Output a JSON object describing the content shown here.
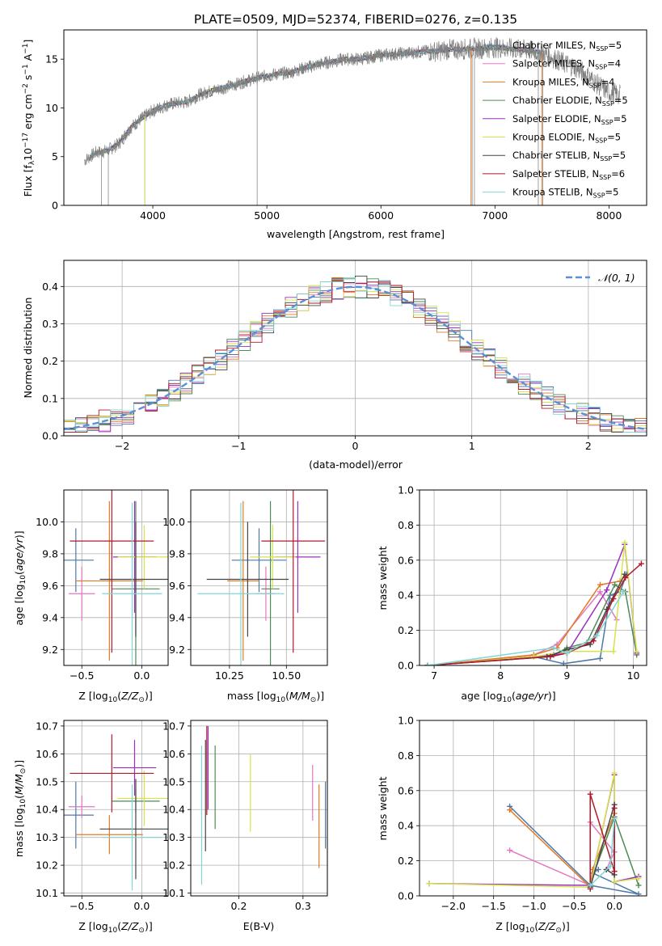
{
  "title": "PLATE=0509, MJD=52374, FIBERID=0276, z=0.135",
  "colors": {
    "series": [
      "#4e79a7",
      "#e377c2",
      "#e07b24",
      "#4f8a57",
      "#9b30c0",
      "#d7e34a",
      "#444444",
      "#b2182b",
      "#7fd6d6"
    ],
    "normal_curve": "#5b8fd6",
    "grid": "#b0b0b0"
  },
  "legend_labels": [
    {
      "pre": "Chabrier MILES, N",
      "sub": "SSP",
      "post": "=5"
    },
    {
      "pre": "Salpeter MILES, N",
      "sub": "SSP",
      "post": "=4"
    },
    {
      "pre": "Kroupa MILES, N",
      "sub": "SSP",
      "post": "=4"
    },
    {
      "pre": "Chabrier ELODIE, N",
      "sub": "SSP",
      "post": "=5"
    },
    {
      "pre": "Salpeter ELODIE, N",
      "sub": "SSP",
      "post": "=5"
    },
    {
      "pre": "Kroupa ELODIE, N",
      "sub": "SSP",
      "post": "=5"
    },
    {
      "pre": "Chabrier STELIB, N",
      "sub": "SSP",
      "post": "=5"
    },
    {
      "pre": "Salpeter STELIB, N",
      "sub": "SSP",
      "post": "=6"
    },
    {
      "pre": "Kroupa STELIB, N",
      "sub": "SSP",
      "post": "=5"
    }
  ],
  "chart_data": [
    {
      "id": "spectrum",
      "type": "line",
      "title": "PLATE=0509, MJD=52374, FIBERID=0276, z=0.135",
      "xlabel": "wavelength [Angstrom, rest frame]",
      "ylabel": "Flux [f_λ 10^-17 erg cm^-2 s^-1 A^-1]",
      "xlim": [
        3220,
        8330
      ],
      "ylim": [
        0,
        18
      ],
      "xticks": [
        4000,
        5000,
        6000,
        7000,
        8000
      ],
      "yticks": [
        0,
        5,
        10,
        15
      ],
      "data_color": "#808080",
      "data_series": {
        "x": [
          3400,
          3500,
          3600,
          3700,
          3800,
          3900,
          4000,
          4100,
          4200,
          4300,
          4400,
          4500,
          4600,
          4700,
          4800,
          4900,
          5000,
          5100,
          5200,
          5300,
          5400,
          5500,
          5600,
          5700,
          5800,
          5900,
          6000,
          6100,
          6200,
          6300,
          6400,
          6500,
          6600,
          6700,
          6800,
          6900,
          7000,
          7100,
          7200,
          7300,
          7400,
          7500,
          7600,
          7700,
          7800,
          7900,
          8000,
          8100
        ],
        "y": [
          4.6,
          5.4,
          5.6,
          6.3,
          7.9,
          8.9,
          9.7,
          10.2,
          10.5,
          10.6,
          11.3,
          11.7,
          12.0,
          12.3,
          12.7,
          13.0,
          13.3,
          13.5,
          13.6,
          14.0,
          14.3,
          14.6,
          14.8,
          15.0,
          15.0,
          15.2,
          15.4,
          15.5,
          15.6,
          15.7,
          15.8,
          15.8,
          16.0,
          16.0,
          16.1,
          16.1,
          16.2,
          16.1,
          16.0,
          15.9,
          15.7,
          15.2,
          14.6,
          14.2,
          13.4,
          12.4,
          11.6,
          11.3
        ]
      },
      "model_x_range": [
        3450,
        7400
      ]
    },
    {
      "id": "residual-hist",
      "type": "line",
      "xlabel": "(data-model)/error",
      "ylabel": "Normed distribution",
      "xlim": [
        -2.5,
        2.5
      ],
      "ylim": [
        0,
        0.47
      ],
      "xticks": [
        -2,
        -1,
        0,
        1,
        2
      ],
      "yticks": [
        0.0,
        0.1,
        0.2,
        0.3,
        0.4
      ],
      "legend": "𝒩(0, 1)",
      "normal": {
        "mean": 0,
        "sigma": 1
      },
      "bin_edges_from": -2.5,
      "bin_width": 0.1,
      "n_bins": 50
    },
    {
      "id": "age-vs-z",
      "type": "scatter",
      "xlabel": "Z [log10(Z/Z⊙)]",
      "ylabel": "age [log10(age/yr)]",
      "xlim": [
        -0.65,
        0.22
      ],
      "ylim": [
        9.1,
        10.2
      ],
      "xticks": [
        -0.5,
        0.0
      ],
      "yticks": [
        9.2,
        9.4,
        9.6,
        9.8,
        10.0
      ],
      "points": [
        {
          "x": -0.55,
          "y": 9.76,
          "xerr": 0.15,
          "yerr": 0.2
        },
        {
          "x": -0.5,
          "y": 9.55,
          "xerr": 0.11,
          "yerr": 0.17
        },
        {
          "x": -0.27,
          "y": 9.63,
          "xerr": 0.28,
          "yerr": 0.5
        },
        {
          "x": -0.05,
          "y": 9.58,
          "xerr": 0.2,
          "yerr": 0.55
        },
        {
          "x": -0.06,
          "y": 9.78,
          "xerr": 0.18,
          "yerr": 0.35
        },
        {
          "x": 0.02,
          "y": 9.78,
          "xerr": 0.22,
          "yerr": 0.2
        },
        {
          "x": -0.05,
          "y": 9.64,
          "xerr": 0.3,
          "yerr": 0.36
        },
        {
          "x": -0.25,
          "y": 9.88,
          "xerr": 0.35,
          "yerr": 0.7
        },
        {
          "x": -0.08,
          "y": 9.55,
          "xerr": 0.25,
          "yerr": 0.57
        }
      ]
    },
    {
      "id": "age-vs-mass",
      "type": "scatter",
      "xlabel": "mass [log10(M/M⊙)]",
      "ylabel": "",
      "xlim": [
        10.08,
        10.68
      ],
      "ylim": [
        9.1,
        10.2
      ],
      "xticks": [
        10.25,
        10.5
      ],
      "yticks": [
        9.2,
        9.4,
        9.6,
        9.8,
        10.0
      ],
      "points": [
        {
          "x": 10.38,
          "y": 9.76,
          "xerr": 0.12,
          "yerr": 0.2
        },
        {
          "x": 10.41,
          "y": 9.55,
          "xerr": 0.04,
          "yerr": 0.17
        },
        {
          "x": 10.31,
          "y": 9.63,
          "xerr": 0.07,
          "yerr": 0.5
        },
        {
          "x": 10.43,
          "y": 9.58,
          "xerr": 0.04,
          "yerr": 0.55
        },
        {
          "x": 10.55,
          "y": 9.78,
          "xerr": 0.1,
          "yerr": 0.35
        },
        {
          "x": 10.44,
          "y": 9.78,
          "xerr": 0.1,
          "yerr": 0.2
        },
        {
          "x": 10.33,
          "y": 9.64,
          "xerr": 0.18,
          "yerr": 0.36
        },
        {
          "x": 10.53,
          "y": 9.88,
          "xerr": 0.14,
          "yerr": 0.7
        },
        {
          "x": 10.3,
          "y": 9.55,
          "xerr": 0.19,
          "yerr": 0.57
        }
      ]
    },
    {
      "id": "weight-vs-age",
      "type": "line",
      "xlabel": "age [log10(age/yr)]",
      "ylabel": "mass weight",
      "xlim": [
        6.78,
        10.2
      ],
      "ylim": [
        0,
        1.0
      ],
      "xticks": [
        7,
        8,
        9,
        10
      ],
      "yticks": [
        0.0,
        0.2,
        0.4,
        0.6,
        0.8,
        1.0
      ],
      "series": [
        {
          "x": [
            6.9,
            8.5,
            8.95,
            9.5,
            9.65,
            9.8,
            9.9
          ],
          "y": [
            0.0,
            0.05,
            0.01,
            0.04,
            0.4,
            0.42,
            0.52
          ]
        },
        {
          "x": [
            6.9,
            8.5,
            8.85,
            9.5,
            9.75
          ],
          "y": [
            0.0,
            0.06,
            0.12,
            0.42,
            0.26
          ]
        },
        {
          "x": [
            6.9,
            8.5,
            8.85,
            9.5,
            9.8
          ],
          "y": [
            0.0,
            0.06,
            0.1,
            0.46,
            0.48
          ]
        },
        {
          "x": [
            6.9,
            8.75,
            9.0,
            9.3,
            9.72,
            9.88,
            10.05
          ],
          "y": [
            0.0,
            0.05,
            0.1,
            0.13,
            0.46,
            0.42,
            0.06
          ]
        },
        {
          "x": [
            6.9,
            8.8,
            9.0,
            9.6,
            9.87,
            10.05
          ],
          "y": [
            0.0,
            0.06,
            0.07,
            0.43,
            0.69,
            0.07
          ]
        },
        {
          "x": [
            6.9,
            8.5,
            9.0,
            9.7,
            9.87,
            10.05
          ],
          "y": [
            0.0,
            0.05,
            0.08,
            0.08,
            0.7,
            0.08
          ]
        },
        {
          "x": [
            6.9,
            8.7,
            9.0,
            9.35,
            9.6,
            9.87
          ],
          "y": [
            0.0,
            0.05,
            0.09,
            0.12,
            0.32,
            0.52
          ]
        },
        {
          "x": [
            6.9,
            8.75,
            9.0,
            9.4,
            9.7,
            9.88,
            10.12
          ],
          "y": [
            0.0,
            0.05,
            0.07,
            0.14,
            0.38,
            0.5,
            0.58
          ]
        },
        {
          "x": [
            6.9,
            8.8,
            9.0,
            9.45,
            9.85
          ],
          "y": [
            0.0,
            0.1,
            0.07,
            0.17,
            0.42
          ]
        }
      ]
    },
    {
      "id": "mass-vs-z",
      "type": "scatter",
      "xlabel": "Z [log10(Z/Z⊙)]",
      "ylabel": "mass [log10(M/M⊙)]",
      "xlim": [
        -0.65,
        0.22
      ],
      "ylim": [
        10.09,
        10.72
      ],
      "xticks": [
        -0.5,
        0.0
      ],
      "yticks": [
        10.1,
        10.2,
        10.3,
        10.4,
        10.5,
        10.6,
        10.7
      ],
      "points": [
        {
          "x": -0.55,
          "y": 10.38,
          "xerr": 0.15,
          "yerr": 0.12
        },
        {
          "x": -0.5,
          "y": 10.41,
          "xerr": 0.11,
          "yerr": 0.04
        },
        {
          "x": -0.27,
          "y": 10.31,
          "xerr": 0.28,
          "yerr": 0.07
        },
        {
          "x": -0.05,
          "y": 10.43,
          "xerr": 0.2,
          "yerr": 0.04
        },
        {
          "x": -0.06,
          "y": 10.55,
          "xerr": 0.18,
          "yerr": 0.1
        },
        {
          "x": 0.02,
          "y": 10.44,
          "xerr": 0.22,
          "yerr": 0.1
        },
        {
          "x": -0.05,
          "y": 10.33,
          "xerr": 0.3,
          "yerr": 0.18
        },
        {
          "x": -0.25,
          "y": 10.53,
          "xerr": 0.35,
          "yerr": 0.14
        },
        {
          "x": -0.08,
          "y": 10.3,
          "xerr": 0.25,
          "yerr": 0.19
        }
      ]
    },
    {
      "id": "mass-vs-ebv",
      "type": "scatter",
      "xlabel": "E(B-V)",
      "ylabel": "",
      "xlim": [
        0.125,
        0.338
      ],
      "ylim": [
        10.09,
        10.72
      ],
      "xticks": [
        0.2,
        0.3
      ],
      "yticks": [
        10.1,
        10.2,
        10.3,
        10.4,
        10.5,
        10.6,
        10.7
      ],
      "points": [
        {
          "x": 0.335,
          "y": 10.38,
          "xerr": 0,
          "yerr": 0.12
        },
        {
          "x": 0.315,
          "y": 10.46,
          "xerr": 0,
          "yerr": 0.1
        },
        {
          "x": 0.325,
          "y": 10.34,
          "xerr": 0,
          "yerr": 0.15
        },
        {
          "x": 0.163,
          "y": 10.48,
          "xerr": 0,
          "yerr": 0.15
        },
        {
          "x": 0.152,
          "y": 10.55,
          "xerr": 0,
          "yerr": 0.15
        },
        {
          "x": 0.218,
          "y": 10.46,
          "xerr": 0,
          "yerr": 0.14
        },
        {
          "x": 0.148,
          "y": 10.45,
          "xerr": 0,
          "yerr": 0.2
        },
        {
          "x": 0.15,
          "y": 10.54,
          "xerr": 0,
          "yerr": 0.16
        },
        {
          "x": 0.142,
          "y": 10.38,
          "xerr": 0,
          "yerr": 0.25
        }
      ]
    },
    {
      "id": "weight-vs-z",
      "type": "line",
      "xlabel": "Z [log10(Z/Z⊙)]",
      "ylabel": "mass weight",
      "xlim": [
        -2.42,
        0.4
      ],
      "ylim": [
        0,
        1.0
      ],
      "xticks": [
        -2.0,
        -1.5,
        -1.0,
        -0.5,
        0.0
      ],
      "yticks": [
        0.0,
        0.2,
        0.4,
        0.6,
        0.8,
        1.0
      ],
      "series": [
        {
          "x": [
            -1.3,
            -0.3,
            0.3,
            -0.27,
            -0.2
          ],
          "y": [
            0.51,
            0.06,
            0.01,
            0.13,
            0.15
          ]
        },
        {
          "x": [
            -1.3,
            -0.3,
            -0.3,
            0.0,
            -0.1
          ],
          "y": [
            0.26,
            0.06,
            0.42,
            0.25,
            0.15
          ]
        },
        {
          "x": [
            -1.3,
            -0.3,
            -0.27,
            0.0
          ],
          "y": [
            0.49,
            0.05,
            0.15,
            0.47
          ]
        },
        {
          "x": [
            -0.3,
            0.0,
            0.3
          ],
          "y": [
            0.07,
            0.45,
            0.06
          ]
        },
        {
          "x": [
            -2.3,
            -0.3,
            0.0,
            0.0,
            0.3
          ],
          "y": [
            0.07,
            0.06,
            0.69,
            0.08,
            0.11
          ]
        },
        {
          "x": [
            -2.3,
            -0.3,
            0.0,
            0.0,
            0.3
          ],
          "y": [
            0.07,
            0.05,
            0.7,
            0.08,
            0.1
          ]
        },
        {
          "x": [
            -0.3,
            0.0,
            0.0,
            -0.1
          ],
          "y": [
            0.05,
            0.52,
            0.12,
            0.15
          ]
        },
        {
          "x": [
            -0.3,
            -0.3,
            0.0,
            0.0
          ],
          "y": [
            0.04,
            0.58,
            0.14,
            0.5
          ]
        },
        {
          "x": [
            -0.3,
            -0.05,
            0.0
          ],
          "y": [
            0.06,
            0.17,
            0.44
          ]
        }
      ]
    }
  ]
}
